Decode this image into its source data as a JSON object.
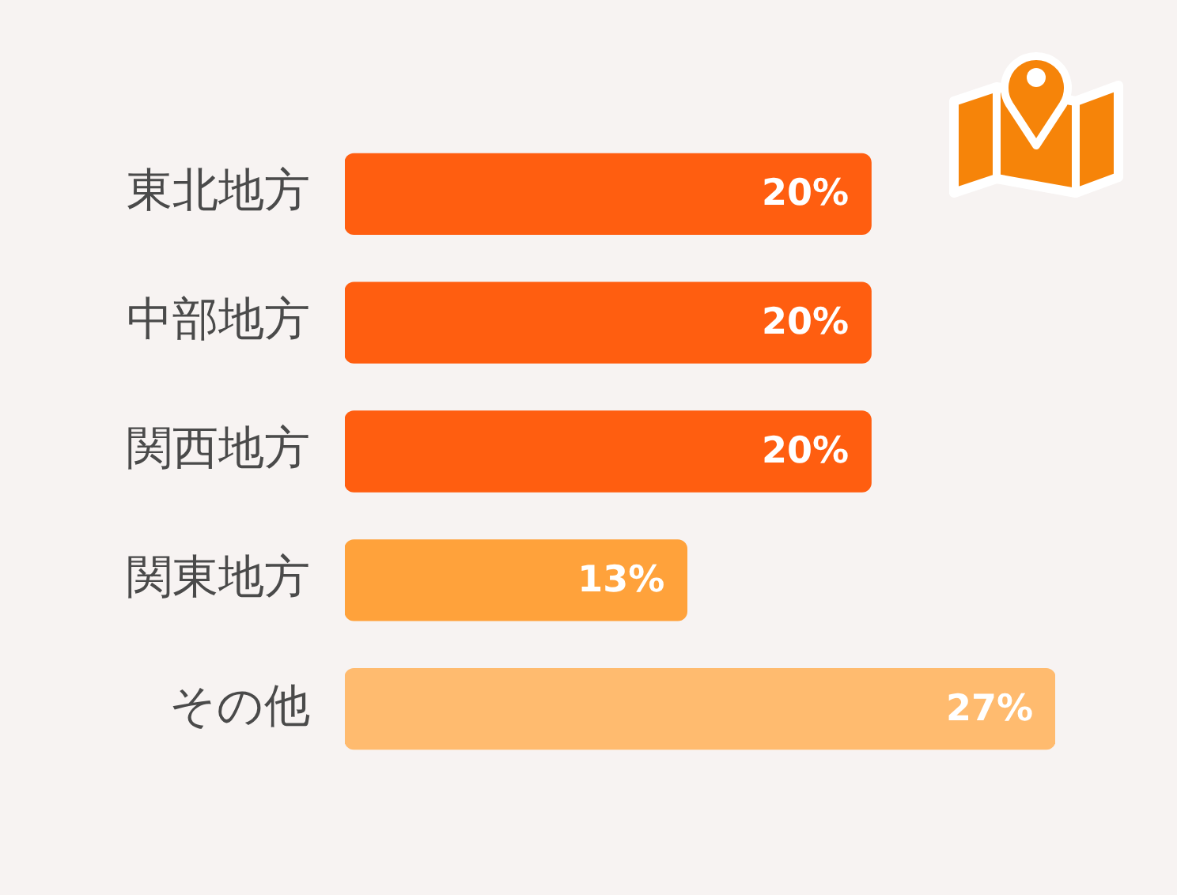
{
  "chart_data": {
    "type": "bar",
    "orientation": "horizontal",
    "categories": [
      "東北地方",
      "中部地方",
      "関西地方",
      "関東地方",
      "その他"
    ],
    "values": [
      20,
      20,
      20,
      13,
      27
    ],
    "colors": [
      "#ff5e10",
      "#ff5e10",
      "#ff5e10",
      "#ffa23b",
      "#ffbb6f"
    ],
    "value_labels": [
      "20%",
      "20%",
      "20%",
      "13%",
      "27%"
    ],
    "tick_labels": "y",
    "grid": false,
    "legend": false
  }
}
